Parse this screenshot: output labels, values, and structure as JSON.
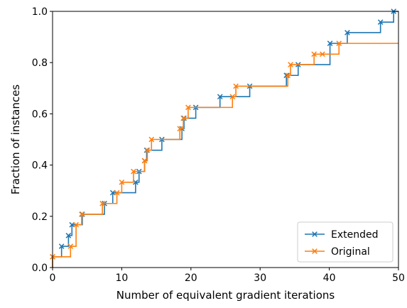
{
  "chart_data": {
    "type": "line",
    "xlabel": "Number of equivalent gradient iterations",
    "ylabel": "Fraction of instances",
    "xlim": [
      0,
      50
    ],
    "ylim": [
      0,
      1.0
    ],
    "xticks": [
      0,
      10,
      20,
      30,
      40,
      50
    ],
    "yticks": [
      0.0,
      0.2,
      0.4,
      0.6,
      0.8,
      1.0
    ],
    "xtick_labels": [
      "0",
      "10",
      "20",
      "30",
      "40",
      "50"
    ],
    "ytick_labels": [
      "0.0",
      "0.2",
      "0.4",
      "0.6",
      "0.8",
      "1.0"
    ],
    "grid": false,
    "legend_position": "lower-right",
    "series": [
      {
        "name": "Extended",
        "color": "#1f77b4",
        "x": [
          0,
          1.3,
          2.3,
          2.8,
          4.3,
          7.5,
          8.7,
          12.0,
          12.5,
          13.3,
          13.6,
          15.8,
          18.7,
          19.0,
          20.7,
          24.2,
          28.5,
          33.8,
          35.5,
          40.1,
          42.6,
          47.4,
          49.3
        ],
        "y": [
          0.042,
          0.083,
          0.125,
          0.167,
          0.208,
          0.25,
          0.292,
          0.333,
          0.375,
          0.417,
          0.458,
          0.5,
          0.542,
          0.583,
          0.625,
          0.667,
          0.708,
          0.75,
          0.792,
          0.875,
          0.917,
          0.958,
          1.0
        ]
      },
      {
        "name": "Original",
        "color": "#ff7f0e",
        "x": [
          0,
          2.6,
          3.4,
          4.2,
          7.2,
          9.3,
          10.0,
          11.7,
          13.3,
          13.7,
          14.3,
          18.4,
          18.9,
          19.6,
          26.0,
          26.5,
          34.0,
          34.4,
          37.8,
          39.0,
          41.4
        ],
        "y": [
          0.042,
          0.083,
          0.167,
          0.208,
          0.25,
          0.292,
          0.333,
          0.375,
          0.417,
          0.458,
          0.5,
          0.542,
          0.583,
          0.625,
          0.667,
          0.708,
          0.75,
          0.792,
          0.833,
          0.833,
          0.875
        ]
      }
    ]
  }
}
